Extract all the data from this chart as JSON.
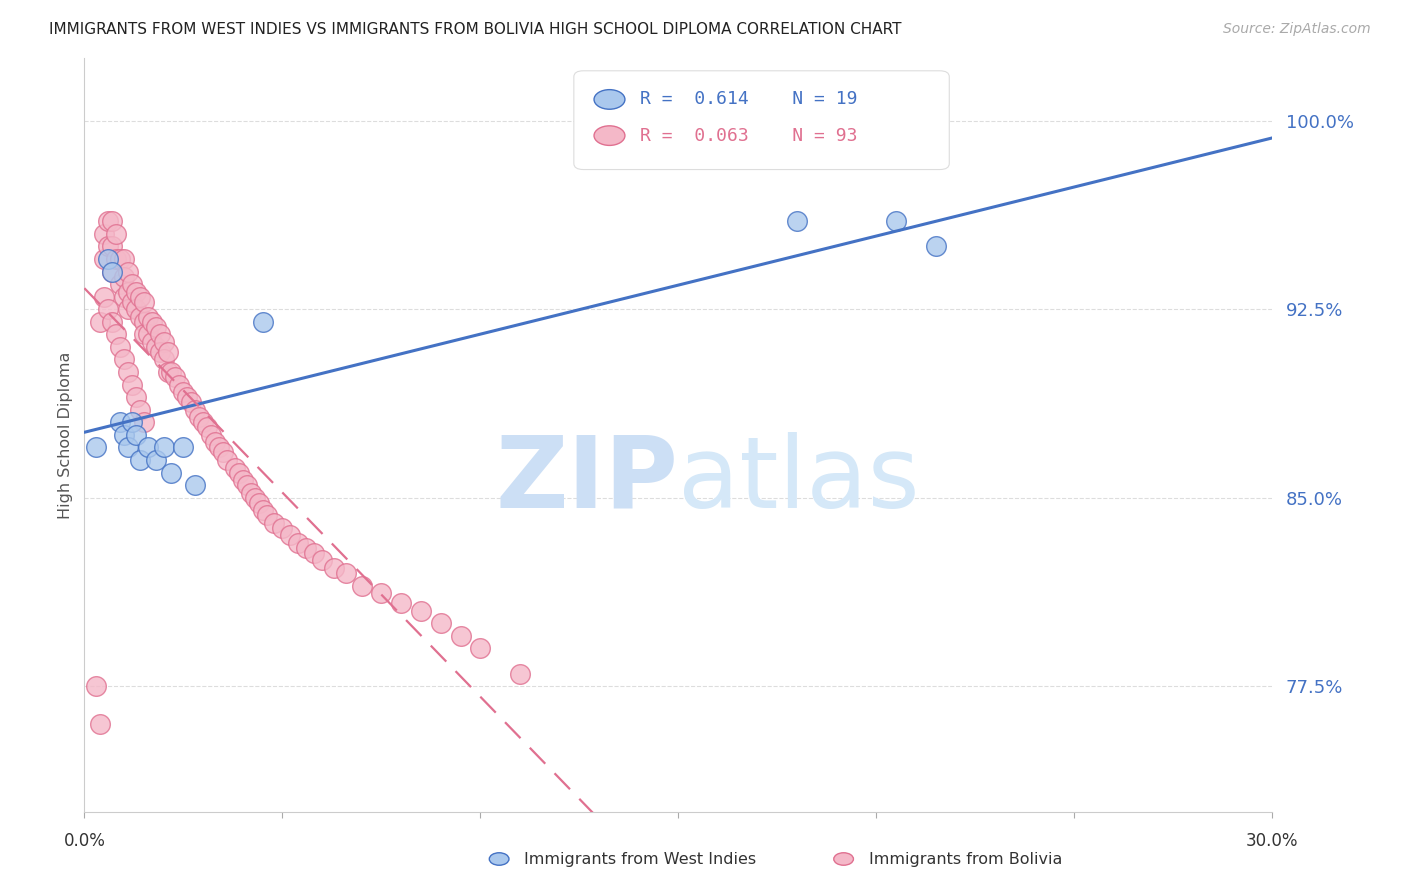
{
  "title": "IMMIGRANTS FROM WEST INDIES VS IMMIGRANTS FROM BOLIVIA HIGH SCHOOL DIPLOMA CORRELATION CHART",
  "source": "Source: ZipAtlas.com",
  "ylabel": "High School Diploma",
  "yticks": [
    0.775,
    0.85,
    0.925,
    1.0
  ],
  "ytick_labels": [
    "77.5%",
    "85.0%",
    "92.5%",
    "100.0%"
  ],
  "xlim": [
    0.0,
    0.3
  ],
  "ylim": [
    0.725,
    1.025
  ],
  "legend_R1": "0.614",
  "legend_N1": "19",
  "legend_R2": "0.063",
  "legend_N2": "93",
  "color_west_indies_fill": "#aac8ed",
  "color_west_indies_edge": "#4472c4",
  "color_bolivia_fill": "#f4b8c8",
  "color_bolivia_edge": "#e07090",
  "color_line_west_indies": "#4472c4",
  "color_line_bolivia": "#e07090",
  "watermark_zip_color": "#c8dff5",
  "watermark_atlas_color": "#c8dff5",
  "ytick_color": "#4472c4",
  "west_indies_x": [
    0.003,
    0.006,
    0.007,
    0.009,
    0.01,
    0.011,
    0.012,
    0.013,
    0.014,
    0.016,
    0.018,
    0.02,
    0.022,
    0.025,
    0.028,
    0.045,
    0.18,
    0.205,
    0.215
  ],
  "west_indies_y": [
    0.87,
    0.945,
    0.94,
    0.88,
    0.875,
    0.87,
    0.88,
    0.875,
    0.865,
    0.87,
    0.865,
    0.87,
    0.86,
    0.87,
    0.855,
    0.92,
    0.96,
    0.96,
    0.95
  ],
  "bolivia_x": [
    0.003,
    0.004,
    0.004,
    0.005,
    0.005,
    0.006,
    0.006,
    0.007,
    0.007,
    0.007,
    0.008,
    0.008,
    0.009,
    0.009,
    0.01,
    0.01,
    0.01,
    0.011,
    0.011,
    0.011,
    0.012,
    0.012,
    0.013,
    0.013,
    0.014,
    0.014,
    0.015,
    0.015,
    0.015,
    0.016,
    0.016,
    0.017,
    0.017,
    0.018,
    0.018,
    0.019,
    0.019,
    0.02,
    0.02,
    0.021,
    0.021,
    0.022,
    0.023,
    0.024,
    0.025,
    0.026,
    0.027,
    0.028,
    0.029,
    0.03,
    0.031,
    0.032,
    0.033,
    0.034,
    0.035,
    0.036,
    0.038,
    0.039,
    0.04,
    0.041,
    0.042,
    0.043,
    0.044,
    0.045,
    0.046,
    0.048,
    0.05,
    0.052,
    0.054,
    0.056,
    0.058,
    0.06,
    0.063,
    0.066,
    0.07,
    0.075,
    0.08,
    0.085,
    0.09,
    0.095,
    0.1,
    0.11,
    0.005,
    0.006,
    0.007,
    0.008,
    0.009,
    0.01,
    0.011,
    0.012,
    0.013,
    0.014,
    0.015
  ],
  "bolivia_y": [
    0.775,
    0.76,
    0.92,
    0.955,
    0.945,
    0.96,
    0.95,
    0.96,
    0.95,
    0.94,
    0.955,
    0.945,
    0.945,
    0.935,
    0.945,
    0.938,
    0.93,
    0.94,
    0.932,
    0.925,
    0.935,
    0.928,
    0.932,
    0.925,
    0.93,
    0.922,
    0.928,
    0.92,
    0.915,
    0.922,
    0.915,
    0.92,
    0.912,
    0.918,
    0.91,
    0.915,
    0.908,
    0.912,
    0.905,
    0.908,
    0.9,
    0.9,
    0.898,
    0.895,
    0.892,
    0.89,
    0.888,
    0.885,
    0.882,
    0.88,
    0.878,
    0.875,
    0.872,
    0.87,
    0.868,
    0.865,
    0.862,
    0.86,
    0.857,
    0.855,
    0.852,
    0.85,
    0.848,
    0.845,
    0.843,
    0.84,
    0.838,
    0.835,
    0.832,
    0.83,
    0.828,
    0.825,
    0.822,
    0.82,
    0.815,
    0.812,
    0.808,
    0.805,
    0.8,
    0.795,
    0.79,
    0.78,
    0.93,
    0.925,
    0.92,
    0.915,
    0.91,
    0.905,
    0.9,
    0.895,
    0.89,
    0.885,
    0.88
  ]
}
